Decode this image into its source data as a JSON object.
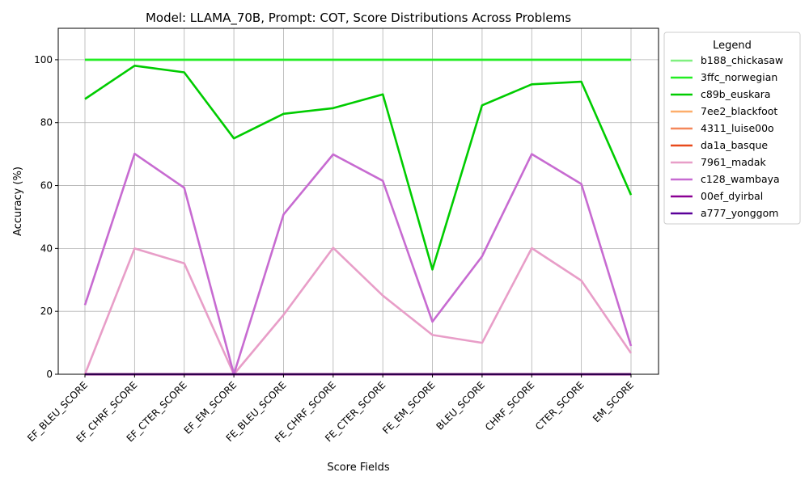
{
  "chart_data": {
    "type": "line",
    "title": "Model: LLAMA_70B, Prompt: COT, Score Distributions Across Problems",
    "xlabel": "Score Fields",
    "ylabel": "Accuracy (%)",
    "ylim": [
      0,
      110
    ],
    "yticks": [
      0,
      20,
      40,
      60,
      80,
      100
    ],
    "grid": true,
    "legend_title": "Legend",
    "legend_position": "outside-right-top",
    "categories": [
      "EF_BLEU_SCORE",
      "EF_CHRF_SCORE",
      "EF_CTER_SCORE",
      "EF_EM_SCORE",
      "FE_BLEU_SCORE",
      "FE_CHRF_SCORE",
      "FE_CTER_SCORE",
      "FE_EM_SCORE",
      "BLEU_SCORE",
      "CHRF_SCORE",
      "CTER_SCORE",
      "EM_SCORE"
    ],
    "series": [
      {
        "name": "b188_chickasaw",
        "color": "#80f080",
        "values": [
          100,
          100,
          100,
          100,
          100,
          100,
          100,
          100,
          100,
          100,
          100,
          100
        ]
      },
      {
        "name": "3ffc_norwegian",
        "color": "#22ee22",
        "values": [
          100,
          100,
          100,
          100,
          100,
          100,
          100,
          100,
          100,
          100,
          100,
          100
        ]
      },
      {
        "name": "c89b_euskara",
        "color": "#00cc00",
        "values": [
          87.5,
          98.1,
          96.0,
          75.0,
          82.8,
          84.6,
          89.0,
          33.3,
          85.5,
          92.2,
          93.0,
          57.0
        ]
      },
      {
        "name": "7ee2_blackfoot",
        "color": "#fdae6b",
        "values": [
          0,
          0,
          0,
          0,
          0,
          0,
          0,
          0,
          0,
          0,
          0,
          0
        ]
      },
      {
        "name": "4311_luise00o",
        "color": "#f4875a",
        "values": [
          0,
          0,
          0,
          0,
          0,
          0,
          0,
          0,
          0,
          0,
          0,
          0
        ]
      },
      {
        "name": "da1a_basque",
        "color": "#e84a1c",
        "values": [
          0,
          0,
          0,
          0,
          0,
          0,
          0,
          0,
          0,
          0,
          0,
          0
        ]
      },
      {
        "name": "7961_madak",
        "color": "#e89ec8",
        "values": [
          0,
          40.0,
          35.3,
          0,
          18.9,
          40.2,
          25.0,
          12.5,
          10.0,
          40.1,
          29.8,
          6.7
        ]
      },
      {
        "name": "c128_wambaya",
        "color": "#c76bd1",
        "values": [
          22.0,
          70.1,
          59.3,
          0,
          50.8,
          69.9,
          61.5,
          16.7,
          37.5,
          70.0,
          60.5,
          9.0
        ]
      },
      {
        "name": "00ef_dyirbal",
        "color": "#8b0094",
        "values": [
          0,
          0,
          0,
          0,
          0,
          0,
          0,
          0,
          0,
          0,
          0,
          0
        ]
      },
      {
        "name": "a777_yonggom",
        "color": "#5a0099",
        "values": [
          0,
          0,
          0,
          0,
          0,
          0,
          0,
          0,
          0,
          0,
          0,
          0
        ]
      }
    ]
  }
}
